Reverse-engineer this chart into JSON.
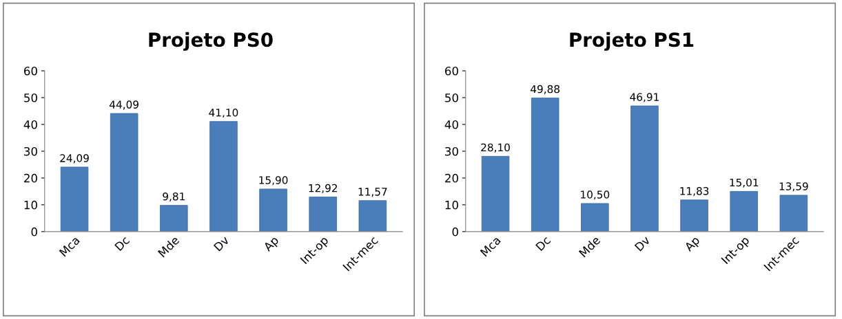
{
  "chart_data": [
    {
      "type": "bar",
      "title": "Projeto PS0",
      "categories": [
        "Mca",
        "Dc",
        "Mde",
        "Dv",
        "Ap",
        "Int-op",
        "Int-mec"
      ],
      "values": [
        24.09,
        44.09,
        9.81,
        41.1,
        15.9,
        12.92,
        11.57
      ],
      "value_labels": [
        "24,09",
        "44,09",
        "9,81",
        "41,10",
        "15,90",
        "12,92",
        "11,57"
      ],
      "color": "#4a7ebb",
      "ylim": [
        0,
        60
      ],
      "yticks": [
        0,
        10,
        20,
        30,
        40,
        50,
        60
      ],
      "grid": false,
      "legend": false
    },
    {
      "type": "bar",
      "title": "Projeto PS1",
      "categories": [
        "Mca",
        "Dc",
        "Mde",
        "Dv",
        "Ap",
        "Int-op",
        "Int-mec"
      ],
      "values": [
        28.1,
        49.88,
        10.5,
        46.91,
        11.83,
        15.01,
        13.59
      ],
      "value_labels": [
        "28,10",
        "49,88",
        "10,50",
        "46,91",
        "11,83",
        "15,01",
        "13,59"
      ],
      "color": "#4a7ebb",
      "ylim": [
        0,
        60
      ],
      "yticks": [
        0,
        10,
        20,
        30,
        40,
        50,
        60
      ],
      "grid": false,
      "legend": false
    }
  ]
}
